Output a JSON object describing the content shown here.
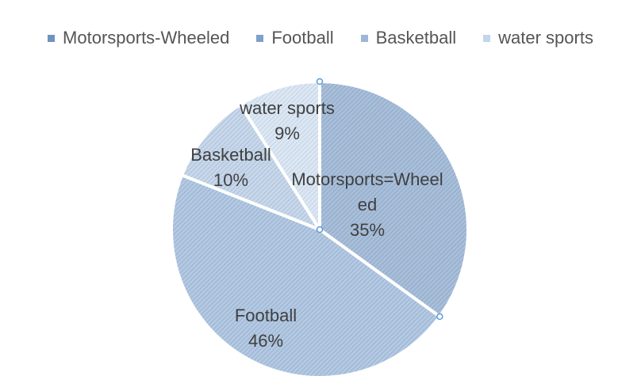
{
  "chart_data": {
    "type": "pie",
    "title": "",
    "legend_position": "top",
    "categories": [
      "Motorsports-Wheeled",
      "Football",
      "Basketball",
      "water sports"
    ],
    "values": [
      35,
      46,
      10,
      9
    ],
    "slice_labels": [
      {
        "lines": [
          "Motorsports=Wheel",
          "ed",
          "35%"
        ]
      },
      {
        "lines": [
          "Football",
          "46%"
        ]
      },
      {
        "lines": [
          "Basketball",
          "10%"
        ]
      },
      {
        "lines": [
          "water sports",
          "9%"
        ]
      }
    ],
    "colors": [
      "#a9bfd9",
      "#b4c9e2",
      "#c8d7ea",
      "#dce7f3"
    ],
    "hatch_color": "#7f9cc0",
    "legend_colors": [
      "#6f93bd",
      "#7fa0c8",
      "#9db7d7",
      "#c3d5ea"
    ]
  }
}
